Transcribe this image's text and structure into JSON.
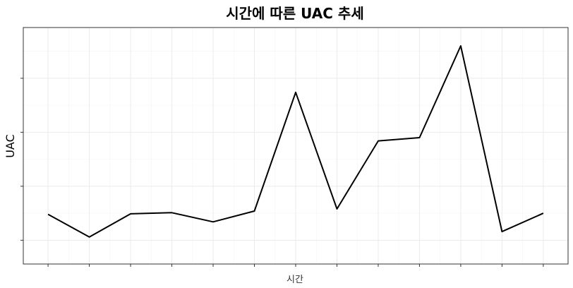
{
  "chart_data": {
    "type": "line",
    "title": "시간에 따른 UAC 추세",
    "xlabel": "시간",
    "ylabel": "UAC",
    "x": [
      1,
      2,
      3,
      4,
      5,
      6,
      7,
      8,
      9,
      10,
      11,
      12,
      13
    ],
    "series": [
      {
        "values": [
          0.24,
          0.03,
          0.245,
          0.255,
          0.17,
          0.27,
          1.37,
          0.29,
          0.92,
          0.95,
          1.8,
          0.08,
          0.25
        ]
      }
    ],
    "xlim": [
      0.4,
      13.6
    ],
    "ylim": [
      -0.22,
      1.97
    ],
    "grid": true,
    "legend": "none",
    "line_color": "#000000",
    "grid_color": "#ebebeb",
    "panel_border_color": "#333333"
  }
}
